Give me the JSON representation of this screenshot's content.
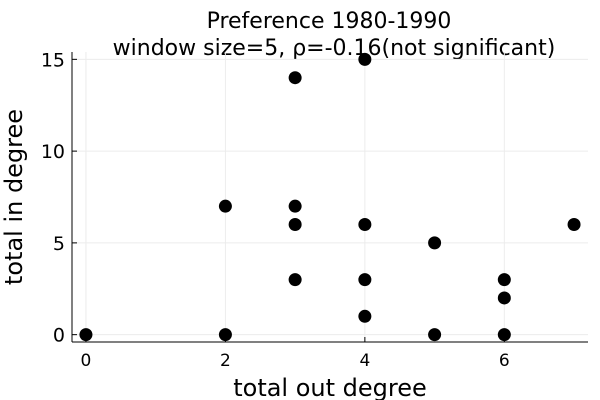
{
  "chart_data": {
    "type": "scatter",
    "title": [
      "Preference 1980-1990",
      "window size=5, ρ=-0.16(not significant)"
    ],
    "xlabel": "total out degree",
    "ylabel": "total in degree",
    "xlim": [
      -0.2,
      7.2
    ],
    "ylim": [
      -0.4,
      15.4
    ],
    "xticks": [
      0,
      2,
      4,
      6
    ],
    "yticks": [
      0,
      5,
      10,
      15
    ],
    "xtick_labels": [
      "0",
      "2",
      "4",
      "6"
    ],
    "ytick_labels": [
      "0",
      "5",
      "10",
      "15"
    ],
    "grid": true,
    "legend": "none",
    "marker_color": "#000000",
    "points": [
      {
        "x": 0,
        "y": 0
      },
      {
        "x": 2,
        "y": 7
      },
      {
        "x": 2,
        "y": 0
      },
      {
        "x": 3,
        "y": 14
      },
      {
        "x": 3,
        "y": 7
      },
      {
        "x": 3,
        "y": 6
      },
      {
        "x": 3,
        "y": 3
      },
      {
        "x": 4,
        "y": 15
      },
      {
        "x": 4,
        "y": 6
      },
      {
        "x": 4,
        "y": 3
      },
      {
        "x": 4,
        "y": 1
      },
      {
        "x": 5,
        "y": 5
      },
      {
        "x": 5,
        "y": 0
      },
      {
        "x": 6,
        "y": 3
      },
      {
        "x": 6,
        "y": 2
      },
      {
        "x": 6,
        "y": 0
      },
      {
        "x": 7,
        "y": 6
      }
    ]
  }
}
